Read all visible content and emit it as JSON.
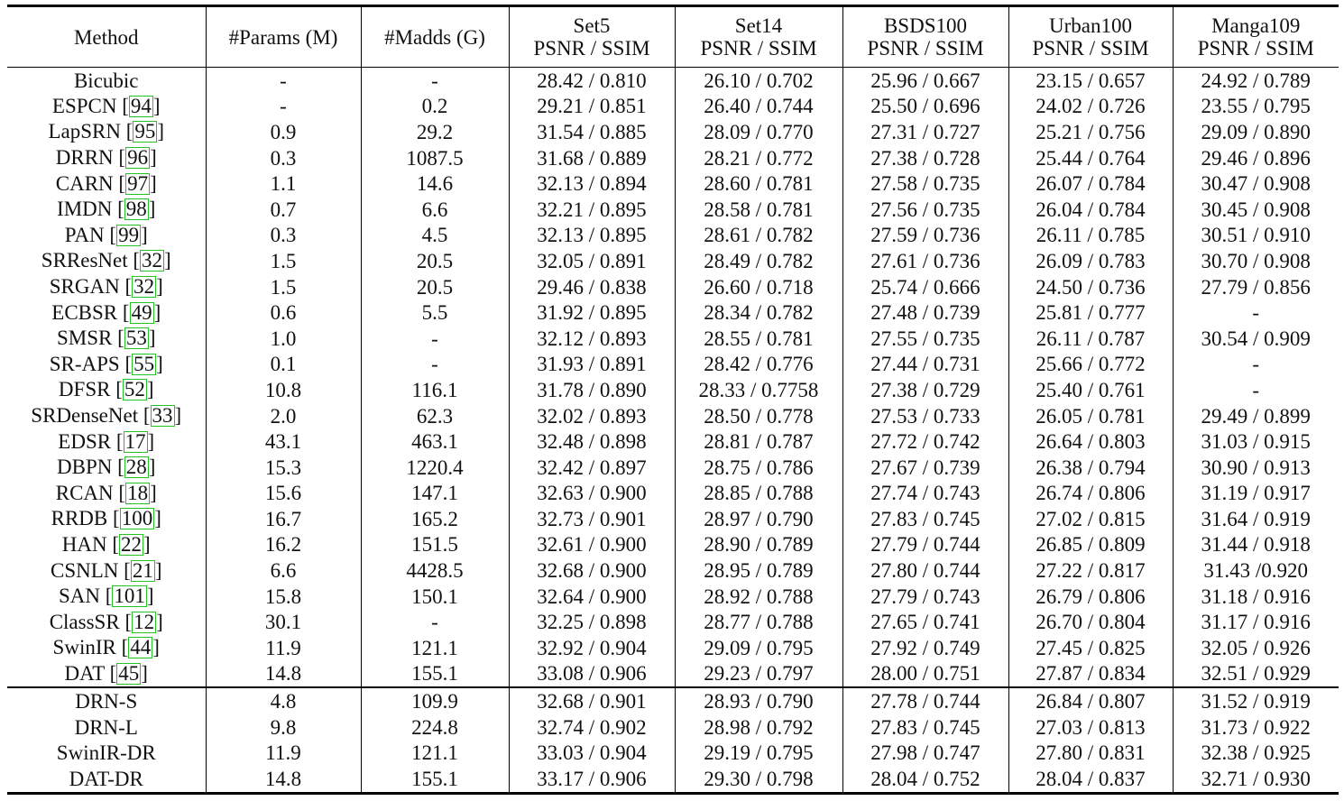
{
  "table": {
    "headers": [
      {
        "line1": "Method",
        "line2": ""
      },
      {
        "line1": "#Params (M)",
        "line2": ""
      },
      {
        "line1": "#Madds (G)",
        "line2": ""
      },
      {
        "line1": "Set5",
        "line2": "PSNR / SSIM"
      },
      {
        "line1": "Set14",
        "line2": "PSNR / SSIM"
      },
      {
        "line1": "BSDS100",
        "line2": "PSNR / SSIM"
      },
      {
        "line1": "Urban100",
        "line2": "PSNR / SSIM"
      },
      {
        "line1": "Manga109",
        "line2": "PSNR / SSIM"
      }
    ],
    "baseline_rows": [
      {
        "method": "Bicubic",
        "ref": "",
        "params": "-",
        "madds": "-",
        "set5": "28.42 / 0.810",
        "set14": "26.10 / 0.702",
        "bsds100": "25.96 / 0.667",
        "urban100": "23.15 / 0.657",
        "manga109": "24.92 / 0.789"
      },
      {
        "method": "ESPCN",
        "ref": "94",
        "params": "-",
        "madds": "0.2",
        "set5": "29.21 / 0.851",
        "set14": "26.40 / 0.744",
        "bsds100": "25.50 / 0.696",
        "urban100": "24.02 / 0.726",
        "manga109": "23.55 / 0.795"
      },
      {
        "method": "LapSRN",
        "ref": "95",
        "params": "0.9",
        "madds": "29.2",
        "set5": "31.54 / 0.885",
        "set14": "28.09 / 0.770",
        "bsds100": "27.31 / 0.727",
        "urban100": "25.21 / 0.756",
        "manga109": "29.09 / 0.890"
      },
      {
        "method": "DRRN",
        "ref": "96",
        "params": "0.3",
        "madds": "1087.5",
        "set5": "31.68 / 0.889",
        "set14": "28.21 / 0.772",
        "bsds100": "27.38 / 0.728",
        "urban100": "25.44 / 0.764",
        "manga109": "29.46 / 0.896"
      },
      {
        "method": "CARN",
        "ref": "97",
        "params": "1.1",
        "madds": "14.6",
        "set5": "32.13 / 0.894",
        "set14": "28.60 / 0.781",
        "bsds100": "27.58 / 0.735",
        "urban100": "26.07 / 0.784",
        "manga109": "30.47 / 0.908"
      },
      {
        "method": "IMDN",
        "ref": "98",
        "params": "0.7",
        "madds": "6.6",
        "set5": "32.21 / 0.895",
        "set14": "28.58 / 0.781",
        "bsds100": "27.56 / 0.735",
        "urban100": "26.04 / 0.784",
        "manga109": "30.45 / 0.908"
      },
      {
        "method": "PAN",
        "ref": "99",
        "params": "0.3",
        "madds": "4.5",
        "set5": "32.13 / 0.895",
        "set14": "28.61 / 0.782",
        "bsds100": "27.59 / 0.736",
        "urban100": "26.11 / 0.785",
        "manga109": "30.51 / 0.910"
      },
      {
        "method": "SRResNet",
        "ref": "32",
        "params": "1.5",
        "madds": "20.5",
        "set5": "32.05 / 0.891",
        "set14": "28.49 / 0.782",
        "bsds100": "27.61 / 0.736",
        "urban100": "26.09 / 0.783",
        "manga109": "30.70 / 0.908"
      },
      {
        "method": "SRGAN",
        "ref": "32",
        "params": "1.5",
        "madds": "20.5",
        "set5": "29.46 / 0.838",
        "set14": "26.60 / 0.718",
        "bsds100": "25.74 / 0.666",
        "urban100": "24.50 / 0.736",
        "manga109": "27.79 / 0.856"
      },
      {
        "method": "ECBSR",
        "ref": "49",
        "params": "0.6",
        "madds": "5.5",
        "set5": "31.92 / 0.895",
        "set14": "28.34 / 0.782",
        "bsds100": "27.48 / 0.739",
        "urban100": "25.81 / 0.777",
        "manga109": "-"
      },
      {
        "method": "SMSR",
        "ref": "53",
        "params": "1.0",
        "madds": "-",
        "set5": "32.12 / 0.893",
        "set14": "28.55 / 0.781",
        "bsds100": "27.55 / 0.735",
        "urban100": "26.11 / 0.787",
        "manga109": "30.54 / 0.909"
      },
      {
        "method": "SR-APS",
        "ref": "55",
        "params": "0.1",
        "madds": "-",
        "set5": "31.93 / 0.891",
        "set14": "28.42 / 0.776",
        "bsds100": "27.44 / 0.731",
        "urban100": "25.66 / 0.772",
        "manga109": "-"
      },
      {
        "method": "DFSR",
        "ref": "52",
        "params": "10.8",
        "madds": "116.1",
        "set5": "31.78 / 0.890",
        "set14": "28.33 / 0.7758",
        "bsds100": "27.38 / 0.729",
        "urban100": "25.40 / 0.761",
        "manga109": "-"
      },
      {
        "method": "SRDenseNet",
        "ref": "33",
        "params": "2.0",
        "madds": "62.3",
        "set5": "32.02 / 0.893",
        "set14": "28.50 / 0.778",
        "bsds100": "27.53 / 0.733",
        "urban100": "26.05 / 0.781",
        "manga109": "29.49 / 0.899"
      },
      {
        "method": "EDSR",
        "ref": "17",
        "params": "43.1",
        "madds": "463.1",
        "set5": "32.48 / 0.898",
        "set14": "28.81 / 0.787",
        "bsds100": "27.72 / 0.742",
        "urban100": "26.64 / 0.803",
        "manga109": "31.03 / 0.915"
      },
      {
        "method": "DBPN",
        "ref": "28",
        "params": "15.3",
        "madds": "1220.4",
        "set5": "32.42 / 0.897",
        "set14": "28.75 / 0.786",
        "bsds100": "27.67 / 0.739",
        "urban100": "26.38 / 0.794",
        "manga109": "30.90 / 0.913"
      },
      {
        "method": "RCAN",
        "ref": "18",
        "params": "15.6",
        "madds": "147.1",
        "set5": "32.63 / 0.900",
        "set14": "28.85 / 0.788",
        "bsds100": "27.74 / 0.743",
        "urban100": "26.74 / 0.806",
        "manga109": "31.19 / 0.917"
      },
      {
        "method": "RRDB",
        "ref": "100",
        "params": "16.7",
        "madds": "165.2",
        "set5": "32.73 / 0.901",
        "set14": "28.97 / 0.790",
        "bsds100": "27.83 / 0.745",
        "urban100": "27.02 / 0.815",
        "manga109": "31.64 / 0.919"
      },
      {
        "method": "HAN",
        "ref": "22",
        "params": "16.2",
        "madds": "151.5",
        "set5": "32.61 / 0.900",
        "set14": "28.90 / 0.789",
        "bsds100": "27.79 / 0.744",
        "urban100": "26.85 / 0.809",
        "manga109": "31.44 / 0.918"
      },
      {
        "method": "CSNLN",
        "ref": "21",
        "params": "6.6",
        "madds": "4428.5",
        "set5": "32.68 / 0.900",
        "set14": "28.95 / 0.789",
        "bsds100": "27.80 / 0.744",
        "urban100": "27.22 / 0.817",
        "manga109": "31.43 /0.920"
      },
      {
        "method": "SAN",
        "ref": "101",
        "params": "15.8",
        "madds": "150.1",
        "set5": "32.64 / 0.900",
        "set14": "28.92 / 0.788",
        "bsds100": "27.79 / 0.743",
        "urban100": "26.79 / 0.806",
        "manga109": "31.18 / 0.916"
      },
      {
        "method": "ClassSR",
        "ref": "12",
        "params": "30.1",
        "madds": "-",
        "set5": "32.25 / 0.898",
        "set14": "28.77 / 0.788",
        "bsds100": "27.65 / 0.741",
        "urban100": "26.70 / 0.804",
        "manga109": "31.17 / 0.916"
      },
      {
        "method": "SwinIR",
        "ref": "44",
        "params": "11.9",
        "madds": "121.1",
        "set5": "32.92 / 0.904",
        "set14": "29.09 / 0.795",
        "bsds100": "27.92 / 0.749",
        "urban100": "27.45 / 0.825",
        "manga109": "32.05 / 0.926"
      },
      {
        "method": "DAT",
        "ref": "45",
        "params": "14.8",
        "madds": "155.1",
        "set5": "33.08 / 0.906",
        "set14": "29.23 / 0.797",
        "bsds100": "28.00 / 0.751",
        "urban100": "27.87 / 0.834",
        "manga109": "32.51 / 0.929"
      }
    ],
    "proposed_rows": [
      {
        "method": "DRN-S",
        "ref": "",
        "params": "4.8",
        "madds": "109.9",
        "set5": "32.68 / 0.901",
        "set14": "28.93 / 0.790",
        "bsds100": "27.78 / 0.744",
        "urban100": "26.84 / 0.807",
        "manga109": "31.52 / 0.919"
      },
      {
        "method": "DRN-L",
        "ref": "",
        "params": "9.8",
        "madds": "224.8",
        "set5": "32.74 / 0.902",
        "set14": "28.98 / 0.792",
        "bsds100": "27.83 / 0.745",
        "urban100": "27.03 / 0.813",
        "manga109": "31.73 / 0.922"
      },
      {
        "method": "SwinIR-DR",
        "ref": "",
        "params": "11.9",
        "madds": "121.1",
        "set5": "33.03 / 0.904",
        "set14": "29.19 / 0.795",
        "bsds100": "27.98 / 0.747",
        "urban100": "27.80 / 0.831",
        "manga109": "32.38 / 0.925"
      },
      {
        "method": "DAT-DR",
        "ref": "",
        "params": "14.8",
        "madds": "155.1",
        "set5": "33.17 / 0.906",
        "set14": "29.30 / 0.798",
        "bsds100": "28.04 / 0.752",
        "urban100": "28.04 / 0.837",
        "manga109": "32.71 / 0.930"
      }
    ]
  }
}
